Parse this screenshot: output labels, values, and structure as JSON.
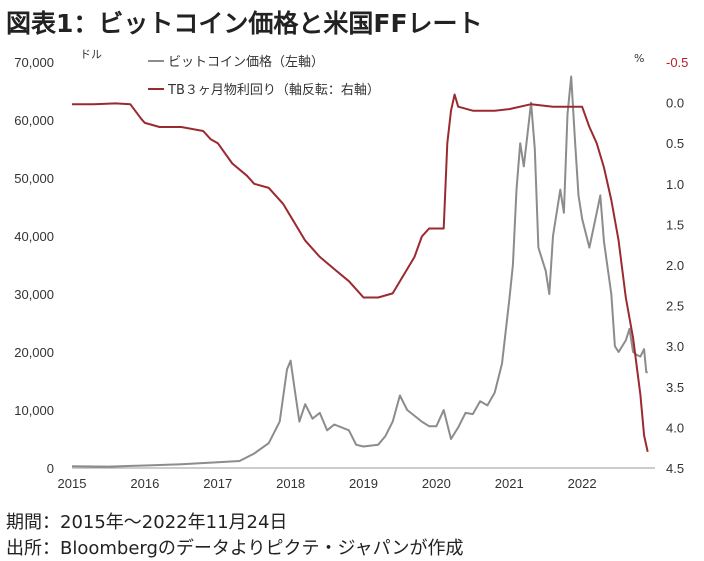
{
  "header": {
    "title": "図表1：ビットコイン価格と米国FFレート"
  },
  "footer": {
    "period": "期間：2015年～2022年11月24日",
    "source": "出所：Bloombergのデータよりピクテ・ジャパンが作成"
  },
  "chart_data": {
    "type": "line",
    "title": "図表1：ビットコイン価格と米国FFレート",
    "x_ticks": [
      "2015",
      "2016",
      "2017",
      "2018",
      "2019",
      "2020",
      "2021",
      "2022"
    ],
    "left_axis": {
      "unit": "ドル",
      "range": [
        0,
        70000
      ],
      "ticks": [
        "70,000",
        "60,000",
        "50,000",
        "40,000",
        "30,000",
        "20,000",
        "10,000",
        "0"
      ]
    },
    "right_axis": {
      "unit": "%",
      "inverted": true,
      "range": [
        -0.5,
        4.5
      ],
      "ticks": [
        "-0.5",
        "0.0",
        "0.5",
        "1.0",
        "1.5",
        "2.0",
        "2.5",
        "3.0",
        "3.5",
        "4.0",
        "4.5"
      ]
    },
    "legend_position": "top",
    "grid": false,
    "series": [
      {
        "name": "ビットコイン価格（左軸）",
        "axis": "left",
        "color": "#8c8c8c",
        "points": [
          [
            2015.0,
            300
          ],
          [
            2015.5,
            250
          ],
          [
            2016.0,
            430
          ],
          [
            2016.5,
            650
          ],
          [
            2017.0,
            1000
          ],
          [
            2017.3,
            1200
          ],
          [
            2017.5,
            2500
          ],
          [
            2017.7,
            4300
          ],
          [
            2017.85,
            8000
          ],
          [
            2017.95,
            17000
          ],
          [
            2018.0,
            18500
          ],
          [
            2018.05,
            14000
          ],
          [
            2018.12,
            8000
          ],
          [
            2018.2,
            11000
          ],
          [
            2018.3,
            8500
          ],
          [
            2018.4,
            9500
          ],
          [
            2018.5,
            6500
          ],
          [
            2018.6,
            7500
          ],
          [
            2018.8,
            6500
          ],
          [
            2018.9,
            4000
          ],
          [
            2019.0,
            3700
          ],
          [
            2019.2,
            4000
          ],
          [
            2019.3,
            5500
          ],
          [
            2019.4,
            8000
          ],
          [
            2019.5,
            12500
          ],
          [
            2019.6,
            10000
          ],
          [
            2019.8,
            8000
          ],
          [
            2019.9,
            7200
          ],
          [
            2020.0,
            7200
          ],
          [
            2020.1,
            10000
          ],
          [
            2020.2,
            5000
          ],
          [
            2020.3,
            7000
          ],
          [
            2020.4,
            9500
          ],
          [
            2020.5,
            9300
          ],
          [
            2020.6,
            11500
          ],
          [
            2020.7,
            10800
          ],
          [
            2020.8,
            13000
          ],
          [
            2020.9,
            18000
          ],
          [
            2021.0,
            29000
          ],
          [
            2021.05,
            35000
          ],
          [
            2021.1,
            48000
          ],
          [
            2021.15,
            56000
          ],
          [
            2021.2,
            52000
          ],
          [
            2021.3,
            63000
          ],
          [
            2021.35,
            55000
          ],
          [
            2021.4,
            38000
          ],
          [
            2021.5,
            34000
          ],
          [
            2021.55,
            30000
          ],
          [
            2021.6,
            40000
          ],
          [
            2021.7,
            48000
          ],
          [
            2021.75,
            44000
          ],
          [
            2021.8,
            61000
          ],
          [
            2021.85,
            67500
          ],
          [
            2021.9,
            57000
          ],
          [
            2021.95,
            47000
          ],
          [
            2022.0,
            43000
          ],
          [
            2022.1,
            38000
          ],
          [
            2022.2,
            44000
          ],
          [
            2022.25,
            47000
          ],
          [
            2022.3,
            39000
          ],
          [
            2022.4,
            30000
          ],
          [
            2022.45,
            21000
          ],
          [
            2022.5,
            20000
          ],
          [
            2022.6,
            22000
          ],
          [
            2022.65,
            24000
          ],
          [
            2022.7,
            20000
          ],
          [
            2022.75,
            19500
          ],
          [
            2022.8,
            19200
          ],
          [
            2022.85,
            20500
          ],
          [
            2022.88,
            16500
          ],
          [
            2022.9,
            16500
          ]
        ]
      },
      {
        "name": "TB３ヶ月物利回り（軸反転：右軸）",
        "axis": "right",
        "color": "#9b2a30",
        "points": [
          [
            2015.0,
            0.02
          ],
          [
            2015.3,
            0.02
          ],
          [
            2015.6,
            0.01
          ],
          [
            2015.8,
            0.02
          ],
          [
            2015.95,
            0.2
          ],
          [
            2016.0,
            0.25
          ],
          [
            2016.2,
            0.3
          ],
          [
            2016.5,
            0.3
          ],
          [
            2016.8,
            0.35
          ],
          [
            2016.9,
            0.45
          ],
          [
            2017.0,
            0.5
          ],
          [
            2017.2,
            0.75
          ],
          [
            2017.4,
            0.9
          ],
          [
            2017.5,
            1.0
          ],
          [
            2017.7,
            1.05
          ],
          [
            2017.9,
            1.25
          ],
          [
            2018.0,
            1.4
          ],
          [
            2018.2,
            1.7
          ],
          [
            2018.4,
            1.9
          ],
          [
            2018.6,
            2.05
          ],
          [
            2018.8,
            2.2
          ],
          [
            2018.95,
            2.35
          ],
          [
            2019.0,
            2.4
          ],
          [
            2019.2,
            2.4
          ],
          [
            2019.4,
            2.35
          ],
          [
            2019.5,
            2.2
          ],
          [
            2019.6,
            2.05
          ],
          [
            2019.7,
            1.9
          ],
          [
            2019.8,
            1.65
          ],
          [
            2019.9,
            1.55
          ],
          [
            2020.0,
            1.55
          ],
          [
            2020.1,
            1.55
          ],
          [
            2020.15,
            0.5
          ],
          [
            2020.2,
            0.1
          ],
          [
            2020.25,
            -0.1
          ],
          [
            2020.3,
            0.05
          ],
          [
            2020.5,
            0.1
          ],
          [
            2020.8,
            0.1
          ],
          [
            2021.0,
            0.08
          ],
          [
            2021.3,
            0.02
          ],
          [
            2021.6,
            0.05
          ],
          [
            2021.9,
            0.05
          ],
          [
            2022.0,
            0.05
          ],
          [
            2022.1,
            0.3
          ],
          [
            2022.2,
            0.5
          ],
          [
            2022.3,
            0.8
          ],
          [
            2022.4,
            1.2
          ],
          [
            2022.5,
            1.7
          ],
          [
            2022.6,
            2.4
          ],
          [
            2022.7,
            2.9
          ],
          [
            2022.8,
            3.6
          ],
          [
            2022.85,
            4.1
          ],
          [
            2022.9,
            4.3
          ]
        ]
      }
    ]
  }
}
